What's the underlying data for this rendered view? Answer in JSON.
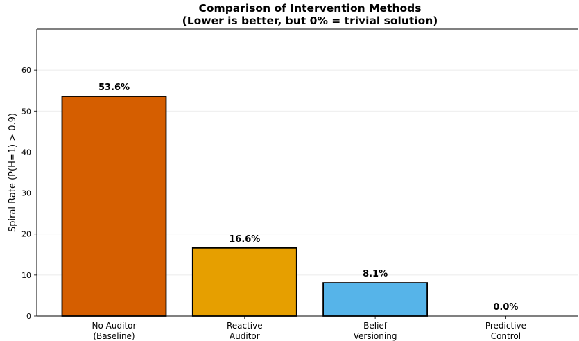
{
  "chart_data": {
    "type": "bar",
    "title_line1": "Comparison of Intervention Methods",
    "title_line2": "(Lower is better, but 0% = trivial solution)",
    "xlabel": "",
    "ylabel": "Spiral Rate (P(H=1) > 0.9)",
    "ylim": [
      0,
      70
    ],
    "yticks": [
      0,
      10,
      20,
      30,
      40,
      50,
      60
    ],
    "grid": "horizontal",
    "categories": [
      {
        "line1": "No Auditor",
        "line2": "(Baseline)"
      },
      {
        "line1": "Reactive",
        "line2": "Auditor"
      },
      {
        "line1": "Belief",
        "line2": "Versioning"
      },
      {
        "line1": "Predictive",
        "line2": "Control"
      }
    ],
    "values": [
      53.6,
      16.6,
      8.1,
      0.0
    ],
    "value_labels": [
      "53.6%",
      "16.6%",
      "8.1%",
      "0.0%"
    ],
    "colors": [
      "#d55e00",
      "#e69f00",
      "#56b4e9",
      "#009e73"
    ]
  }
}
